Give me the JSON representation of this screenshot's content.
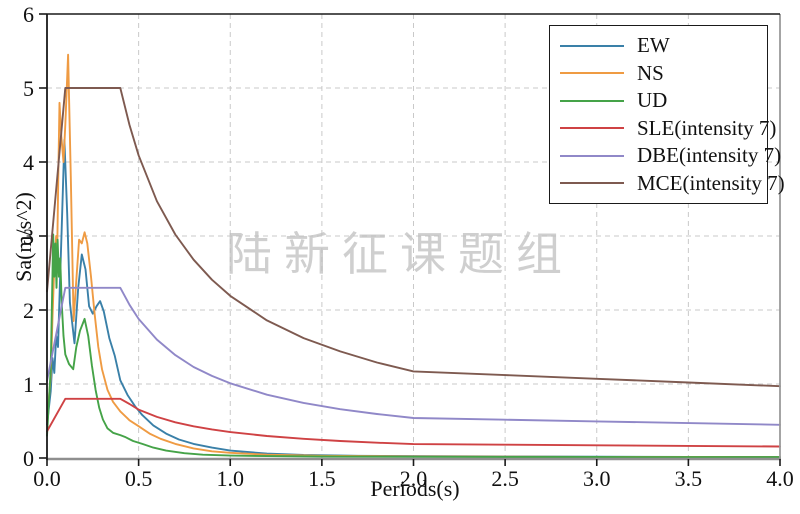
{
  "watermark": {
    "text": "陆新征课题组",
    "color": "#bfbfbf"
  },
  "chart_data": {
    "type": "line",
    "title": "",
    "xlabel": "Periods(s)",
    "ylabel": "Sa(m/s^2)",
    "xlim": [
      0,
      4
    ],
    "ylim": [
      0,
      6
    ],
    "grid": true,
    "grid_style": "dashed",
    "grid_color": "#c9c9c9",
    "legend_position": "upper right",
    "xticks": {
      "values": [
        0,
        0.5,
        1,
        1.5,
        2,
        2.5,
        3,
        3.5,
        4
      ],
      "labels": [
        "0.0",
        "0.5",
        "1.0",
        "1.5",
        "2.0",
        "2.5",
        "3.0",
        "3.5",
        "4.0"
      ]
    },
    "yticks": {
      "values": [
        0,
        1,
        2,
        3,
        4,
        5,
        6
      ],
      "labels": [
        "0",
        "1",
        "2",
        "3",
        "4",
        "5",
        "6"
      ]
    },
    "series": [
      {
        "name": "EW",
        "color": "#3a80a8",
        "points": [
          [
            0,
            0.45
          ],
          [
            0.02,
            0.9
          ],
          [
            0.03,
            1.35
          ],
          [
            0.04,
            1.15
          ],
          [
            0.05,
            1.65
          ],
          [
            0.06,
            1.5
          ],
          [
            0.07,
            2.3
          ],
          [
            0.08,
            3.1
          ],
          [
            0.095,
            4.3
          ],
          [
            0.11,
            3.3
          ],
          [
            0.125,
            2.1
          ],
          [
            0.15,
            1.55
          ],
          [
            0.17,
            2.3
          ],
          [
            0.19,
            2.75
          ],
          [
            0.21,
            2.55
          ],
          [
            0.23,
            2.05
          ],
          [
            0.25,
            1.95
          ],
          [
            0.27,
            2.05
          ],
          [
            0.29,
            2.12
          ],
          [
            0.31,
            1.98
          ],
          [
            0.34,
            1.62
          ],
          [
            0.37,
            1.38
          ],
          [
            0.4,
            1.05
          ],
          [
            0.44,
            0.85
          ],
          [
            0.48,
            0.7
          ],
          [
            0.52,
            0.58
          ],
          [
            0.58,
            0.44
          ],
          [
            0.65,
            0.33
          ],
          [
            0.72,
            0.25
          ],
          [
            0.8,
            0.19
          ],
          [
            0.9,
            0.14
          ],
          [
            1.0,
            0.1
          ],
          [
            1.2,
            0.06
          ],
          [
            1.4,
            0.04
          ],
          [
            1.7,
            0.03
          ],
          [
            2.0,
            0.025
          ],
          [
            2.5,
            0.02
          ],
          [
            3.0,
            0.018
          ],
          [
            3.5,
            0.015
          ],
          [
            4.0,
            0.013
          ]
        ]
      },
      {
        "name": "NS",
        "color": "#ef9b43",
        "points": [
          [
            0,
            0.5
          ],
          [
            0.02,
            1.1
          ],
          [
            0.03,
            1.9
          ],
          [
            0.04,
            2.6
          ],
          [
            0.05,
            3.0
          ],
          [
            0.055,
            2.7
          ],
          [
            0.062,
            3.9
          ],
          [
            0.068,
            4.8
          ],
          [
            0.078,
            4.35
          ],
          [
            0.09,
            4.0
          ],
          [
            0.1,
            4.5
          ],
          [
            0.115,
            5.45
          ],
          [
            0.13,
            3.8
          ],
          [
            0.145,
            1.85
          ],
          [
            0.16,
            2.4
          ],
          [
            0.175,
            2.95
          ],
          [
            0.19,
            2.9
          ],
          [
            0.205,
            3.05
          ],
          [
            0.22,
            2.9
          ],
          [
            0.24,
            2.45
          ],
          [
            0.26,
            1.95
          ],
          [
            0.28,
            1.5
          ],
          [
            0.3,
            1.2
          ],
          [
            0.33,
            0.92
          ],
          [
            0.36,
            0.76
          ],
          [
            0.4,
            0.63
          ],
          [
            0.45,
            0.51
          ],
          [
            0.5,
            0.43
          ],
          [
            0.56,
            0.33
          ],
          [
            0.62,
            0.26
          ],
          [
            0.7,
            0.19
          ],
          [
            0.8,
            0.13
          ],
          [
            0.9,
            0.09
          ],
          [
            1.0,
            0.07
          ],
          [
            1.2,
            0.045
          ],
          [
            1.5,
            0.03
          ],
          [
            2.0,
            0.022
          ],
          [
            2.5,
            0.018
          ],
          [
            3.0,
            0.015
          ],
          [
            3.5,
            0.013
          ],
          [
            4.0,
            0.012
          ]
        ]
      },
      {
        "name": "UD",
        "color": "#45a348",
        "points": [
          [
            0,
            0.3
          ],
          [
            0.02,
            1.2
          ],
          [
            0.028,
            2.2
          ],
          [
            0.034,
            3.02
          ],
          [
            0.04,
            2.45
          ],
          [
            0.046,
            2.9
          ],
          [
            0.052,
            2.3
          ],
          [
            0.058,
            2.95
          ],
          [
            0.065,
            2.45
          ],
          [
            0.072,
            2.7
          ],
          [
            0.08,
            2.1
          ],
          [
            0.09,
            1.65
          ],
          [
            0.1,
            1.4
          ],
          [
            0.12,
            1.27
          ],
          [
            0.143,
            1.2
          ],
          [
            0.16,
            1.5
          ],
          [
            0.18,
            1.72
          ],
          [
            0.205,
            1.88
          ],
          [
            0.225,
            1.65
          ],
          [
            0.245,
            1.25
          ],
          [
            0.265,
            0.92
          ],
          [
            0.285,
            0.68
          ],
          [
            0.305,
            0.52
          ],
          [
            0.33,
            0.4
          ],
          [
            0.36,
            0.34
          ],
          [
            0.4,
            0.31
          ],
          [
            0.43,
            0.28
          ],
          [
            0.47,
            0.23
          ],
          [
            0.52,
            0.19
          ],
          [
            0.58,
            0.14
          ],
          [
            0.65,
            0.1
          ],
          [
            0.75,
            0.065
          ],
          [
            0.85,
            0.045
          ],
          [
            1.0,
            0.032
          ],
          [
            1.2,
            0.025
          ],
          [
            1.5,
            0.02
          ],
          [
            2.0,
            0.016
          ],
          [
            2.5,
            0.014
          ],
          [
            3.0,
            0.013
          ],
          [
            3.5,
            0.012
          ],
          [
            4.0,
            0.012
          ]
        ]
      },
      {
        "name": "SLE(intensity 7)",
        "color": "#cf4244",
        "points": [
          [
            0,
            0.36
          ],
          [
            0.1,
            0.8
          ],
          [
            0.4,
            0.8
          ],
          [
            0.45,
            0.73
          ],
          [
            0.5,
            0.654
          ],
          [
            0.6,
            0.555
          ],
          [
            0.7,
            0.483
          ],
          [
            0.8,
            0.429
          ],
          [
            0.9,
            0.386
          ],
          [
            1.0,
            0.35
          ],
          [
            1.2,
            0.297
          ],
          [
            1.4,
            0.259
          ],
          [
            1.6,
            0.23
          ],
          [
            1.8,
            0.207
          ],
          [
            2.0,
            0.188
          ],
          [
            2.5,
            0.18
          ],
          [
            3.0,
            0.172
          ],
          [
            3.5,
            0.164
          ],
          [
            4.0,
            0.156
          ]
        ]
      },
      {
        "name": "DBE(intensity 7)",
        "color": "#9088c8",
        "points": [
          [
            0,
            1.04
          ],
          [
            0.1,
            2.3
          ],
          [
            0.4,
            2.3
          ],
          [
            0.45,
            2.07
          ],
          [
            0.5,
            1.88
          ],
          [
            0.6,
            1.6
          ],
          [
            0.7,
            1.39
          ],
          [
            0.8,
            1.23
          ],
          [
            0.9,
            1.11
          ],
          [
            1.0,
            1.01
          ],
          [
            1.2,
            0.855
          ],
          [
            1.4,
            0.745
          ],
          [
            1.6,
            0.66
          ],
          [
            1.8,
            0.594
          ],
          [
            2.0,
            0.54
          ],
          [
            2.5,
            0.517
          ],
          [
            3.0,
            0.494
          ],
          [
            3.5,
            0.471
          ],
          [
            4.0,
            0.448
          ]
        ]
      },
      {
        "name": "MCE(intensity 7)",
        "color": "#7e5a50",
        "points": [
          [
            0,
            2.25
          ],
          [
            0.1,
            5.0
          ],
          [
            0.4,
            5.0
          ],
          [
            0.45,
            4.5
          ],
          [
            0.5,
            4.09
          ],
          [
            0.6,
            3.47
          ],
          [
            0.7,
            3.02
          ],
          [
            0.8,
            2.68
          ],
          [
            0.9,
            2.41
          ],
          [
            1.0,
            2.19
          ],
          [
            1.2,
            1.86
          ],
          [
            1.4,
            1.62
          ],
          [
            1.6,
            1.44
          ],
          [
            1.8,
            1.29
          ],
          [
            2.0,
            1.17
          ],
          [
            2.5,
            1.12
          ],
          [
            3.0,
            1.07
          ],
          [
            3.5,
            1.02
          ],
          [
            4.0,
            0.97
          ]
        ]
      }
    ]
  },
  "plot_style": {
    "spine_left_color": "#1a1a1a",
    "spine_top_color": "#1a1a1a",
    "spine_right_color": "#9a9a9a",
    "spine_bottom_color": "#8f8f8f",
    "tick_color": "#1a1a1a",
    "tick_label_color": "#111111",
    "line_width": 1.9
  }
}
